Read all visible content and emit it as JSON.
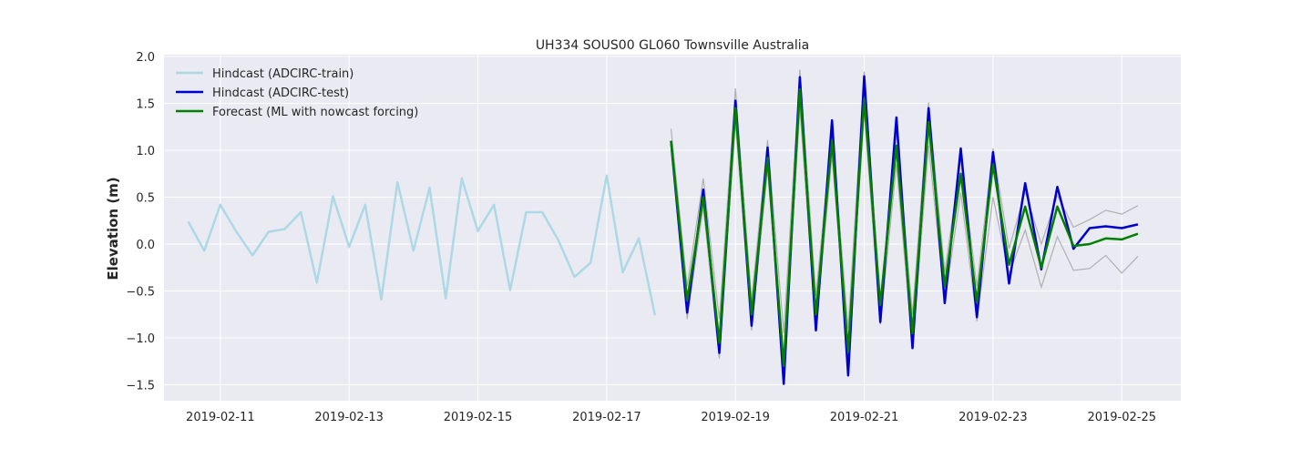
{
  "chart_data": {
    "type": "line",
    "title": "UH334 SOUS00 GL060 Townsville Australia",
    "xlabel": "",
    "ylabel": "Elevation (m)",
    "xlim": [
      "2019-02-10 03:00",
      "2019-02-25 22:00"
    ],
    "ylim": [
      -1.67,
      2.02
    ],
    "grid": true,
    "legend_position": "top-left",
    "background_color": "#eaeaf2",
    "x_ticks": [
      "2019-02-11",
      "2019-02-13",
      "2019-02-15",
      "2019-02-17",
      "2019-02-19",
      "2019-02-21",
      "2019-02-23",
      "2019-02-25"
    ],
    "y_ticks": [
      "2.0",
      "1.5",
      "1.0",
      "0.5",
      "0.0",
      "−0.5",
      "−1.0",
      "−1.5"
    ],
    "series": [
      {
        "name": "Hindcast (ADCIRC-train)",
        "color": "#add8e6",
        "start": "2019-02-10 12:00",
        "interval_hours": 6,
        "values": [
          0.24,
          -0.07,
          0.42,
          0.13,
          -0.12,
          0.13,
          0.16,
          0.34,
          -0.41,
          0.51,
          -0.03,
          0.42,
          -0.59,
          0.66,
          -0.07,
          0.6,
          -0.58,
          0.7,
          0.14,
          0.42,
          -0.49,
          0.34,
          0.34,
          0.04,
          -0.35,
          -0.2,
          0.73,
          -0.3,
          0.06,
          -0.76
        ]
      },
      {
        "name": "Hindcast (ADCIRC-test)",
        "color": "#0000cd",
        "start": "2019-02-18 00:00",
        "interval_hours": 6,
        "values": [
          1.1,
          -0.73,
          0.58,
          -1.16,
          1.53,
          -0.87,
          1.03,
          -1.49,
          1.78,
          -0.92,
          1.32,
          -1.4,
          1.79,
          -0.83,
          1.35,
          -1.11,
          1.45,
          -0.63,
          1.02,
          -0.78,
          0.98,
          -0.42,
          0.65,
          -0.27,
          0.61,
          -0.05,
          0.17,
          0.19,
          0.17,
          0.21
        ]
      },
      {
        "name": "Forecast (ML with nowcast forcing)",
        "color": "#008000",
        "start": "2019-02-18 00:00",
        "interval_hours": 6,
        "values": [
          1.1,
          -0.6,
          0.5,
          -1.05,
          1.45,
          -0.75,
          0.92,
          -1.3,
          1.65,
          -0.75,
          1.1,
          -1.15,
          1.55,
          -0.65,
          1.05,
          -0.95,
          1.3,
          -0.45,
          0.75,
          -0.62,
          0.85,
          -0.22,
          0.4,
          -0.25,
          0.4,
          -0.02,
          0.0,
          0.06,
          0.05,
          0.11
        ]
      }
    ],
    "bounds": {
      "color": "#b0b0b0",
      "start": "2019-02-18 00:00",
      "interval_hours": 6,
      "upper": [
        1.23,
        -0.45,
        0.7,
        -0.8,
        1.66,
        -0.6,
        1.11,
        -0.95,
        1.86,
        -0.55,
        1.2,
        -0.9,
        1.84,
        -0.6,
        1.2,
        -0.75,
        1.51,
        -0.3,
        0.9,
        -0.45,
        1.02,
        -0.05,
        0.56,
        0.0,
        0.52,
        0.18,
        0.26,
        0.36,
        0.32,
        0.41
      ],
      "lower": [
        1.0,
        -0.8,
        0.4,
        -1.22,
        1.3,
        -0.92,
        0.8,
        -1.4,
        1.45,
        -0.9,
        0.95,
        -1.2,
        1.42,
        -0.86,
        0.85,
        -1.1,
        1.05,
        -0.62,
        0.55,
        -0.82,
        0.5,
        -0.32,
        0.15,
        -0.46,
        0.08,
        -0.28,
        -0.26,
        -0.12,
        -0.31,
        -0.13
      ]
    }
  }
}
